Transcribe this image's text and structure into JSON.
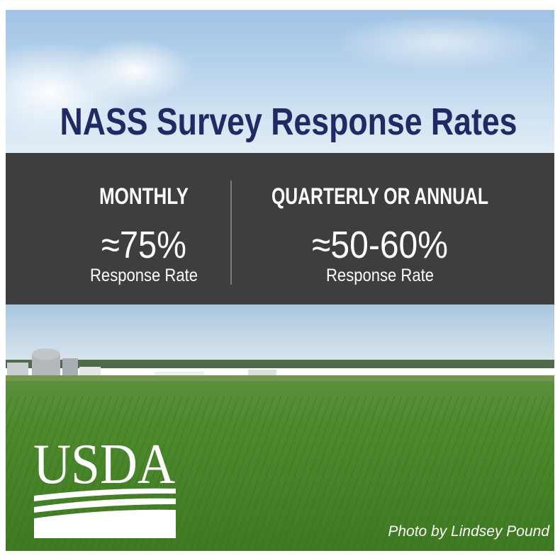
{
  "header": {
    "title": "NASS Survey Response Rates"
  },
  "panels": [
    {
      "label": "MONTHLY",
      "value": "≈75%",
      "caption": "Response Rate"
    },
    {
      "label": "QUARTERLY OR ANNUAL",
      "value": "≈50-60%",
      "caption": "Response Rate"
    }
  ],
  "logo": {
    "text": "USDA"
  },
  "photo_credit": "Photo by Lindsey Pound"
}
